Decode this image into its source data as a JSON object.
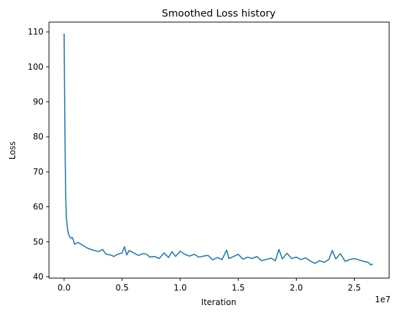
{
  "chart_data": {
    "type": "line",
    "title": "Smoothed Loss history",
    "xlabel": "Iteration",
    "ylabel": "Loss",
    "x_offset_label": "1e7",
    "xlim": [
      -1300000.0,
      28000000.0
    ],
    "ylim": [
      39.6,
      112.8
    ],
    "x_ticks": [
      0,
      5000000,
      10000000,
      15000000,
      20000000,
      25000000
    ],
    "x_tick_labels": [
      "0.0",
      "0.5",
      "1.0",
      "1.5",
      "2.0",
      "2.5"
    ],
    "y_ticks": [
      40,
      50,
      60,
      70,
      80,
      90,
      100,
      110
    ],
    "y_tick_labels": [
      "40",
      "50",
      "60",
      "70",
      "80",
      "90",
      "100",
      "110"
    ],
    "grid": false,
    "line_color": "#1f77b4",
    "series": [
      {
        "x": [
          0,
          50000,
          100000,
          150000,
          200000,
          300000,
          400000,
          500000,
          600000,
          700000,
          800000,
          900000,
          1000000,
          1200000,
          1500000,
          1800000,
          2000000,
          2300000,
          2600000,
          3000000,
          3300000,
          3600000,
          4000000,
          4300000,
          4600000,
          5000000,
          5200000,
          5400000,
          5600000,
          6000000,
          6400000,
          6800000,
          7100000,
          7400000,
          7800000,
          8200000,
          8600000,
          9000000,
          9300000,
          9600000,
          10000000,
          10400000,
          10800000,
          11200000,
          11600000,
          12000000,
          12400000,
          12800000,
          13200000,
          13600000,
          14000000,
          14200000,
          14600000,
          15000000,
          15400000,
          15800000,
          16200000,
          16600000,
          17000000,
          17400000,
          17800000,
          18200000,
          18500000,
          18800000,
          19200000,
          19600000,
          20000000,
          20400000,
          20800000,
          21200000,
          21600000,
          22000000,
          22400000,
          22800000,
          23100000,
          23400000,
          23800000,
          24200000,
          24600000,
          25000000,
          25400000,
          25800000,
          26200000,
          26400000,
          26600000
        ],
        "y": [
          109.5,
          90,
          72,
          62,
          57,
          53.5,
          52,
          51.3,
          51,
          51.2,
          50.5,
          49.3,
          49.5,
          49.8,
          49.2,
          48.6,
          48.2,
          47.8,
          47.5,
          47.2,
          47.8,
          46.5,
          46.2,
          45.8,
          46.4,
          46.8,
          48.6,
          46.2,
          47.5,
          46.8,
          46.1,
          46.6,
          46.4,
          45.6,
          45.8,
          45.2,
          46.8,
          45.5,
          47.2,
          45.8,
          47.3,
          46.4,
          45.9,
          46.4,
          45.6,
          45.9,
          46.1,
          44.8,
          45.5,
          44.9,
          47.6,
          45.2,
          45.8,
          46.4,
          45.0,
          45.6,
          45.2,
          45.8,
          44.6,
          44.9,
          45.3,
          44.6,
          47.8,
          45.1,
          46.7,
          45.2,
          45.6,
          44.9,
          45.4,
          44.5,
          43.8,
          44.6,
          44.1,
          44.9,
          47.5,
          45.1,
          46.6,
          44.4,
          44.9,
          45.2,
          44.8,
          44.4,
          44.1,
          43.4,
          43.6
        ]
      }
    ]
  }
}
